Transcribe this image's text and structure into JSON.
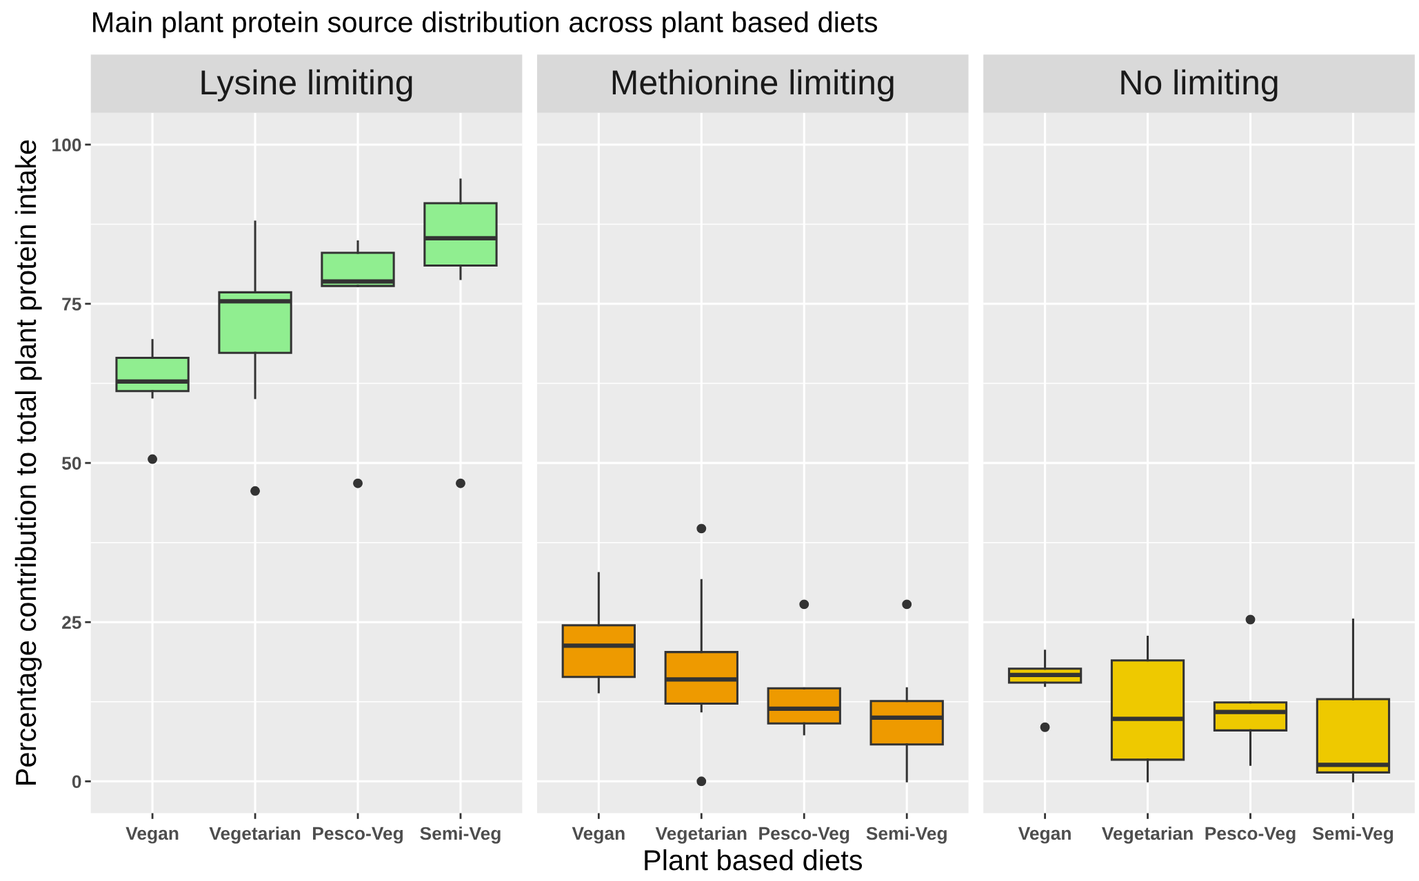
{
  "chart_data": [
    {
      "type": "box",
      "title": "Lysine limiting",
      "ylabel": "Percentage contribution to total plant protein intake",
      "annotations": [
        "Main plant protein source distribution across plant based diets"
      ],
      "categories": [
        "Vegan",
        "Vegetarian",
        "Pesco-Veg",
        "Semi-Veg"
      ],
      "color": "#90ee90",
      "ylim": [
        -5,
        105
      ],
      "yticks": [
        0,
        {
          "value": 12.5,
          "label": null
        },
        25,
        {
          "value": 37.5,
          "label": null
        },
        50,
        {
          "value": 62.5,
          "label": null
        },
        75,
        {
          "value": 87.5,
          "label": null
        },
        100
      ],
      "grid": true,
      "boxes": [
        {
          "low": 60.3,
          "q1": 61.3,
          "median": 62.8,
          "q3": 66.5,
          "high": 69.3,
          "outliers": [
            50.6
          ]
        },
        {
          "low": 60.2,
          "q1": 67.3,
          "median": 75.4,
          "q3": 76.8,
          "high": 87.9,
          "outliers": [
            45.6
          ]
        },
        {
          "low": 77.8,
          "q1": 77.8,
          "median": 78.5,
          "q3": 83.0,
          "high": 84.8,
          "outliers": [
            46.8
          ]
        },
        {
          "low": 78.9,
          "q1": 81.0,
          "median": 85.3,
          "q3": 90.8,
          "high": 94.5,
          "outliers": [
            46.8
          ]
        }
      ]
    },
    {
      "type": "box",
      "title": "Methionine limiting",
      "xlabel": "Plant based diets",
      "categories": [
        "Vegan",
        "Vegetarian",
        "Pesco-Veg",
        "Semi-Veg"
      ],
      "color": "#ee9a00",
      "ylim": [
        -5,
        105
      ],
      "yticks": [
        0,
        {
          "value": 12.5,
          "label": null
        },
        25,
        {
          "value": 37.5,
          "label": null
        },
        50,
        {
          "value": 62.5,
          "label": null
        },
        75,
        {
          "value": 87.5,
          "label": null
        },
        100
      ],
      "grid": true,
      "tick_labels": "x",
      "boxes": [
        {
          "low": 14.0,
          "q1": 16.4,
          "median": 21.3,
          "q3": 24.5,
          "high": 32.7
        },
        {
          "low": 11.0,
          "q1": 12.2,
          "median": 16.0,
          "q3": 20.3,
          "high": 31.6,
          "outliers": [
            39.7,
            0
          ]
        },
        {
          "low": 7.4,
          "q1": 9.1,
          "median": 11.4,
          "q3": 14.6,
          "high": 14.6,
          "outliers": [
            27.8
          ]
        },
        {
          "low": 0,
          "q1": 5.8,
          "median": 10.0,
          "q3": 12.6,
          "high": 14.6,
          "outliers": [
            27.8
          ]
        }
      ]
    },
    {
      "type": "box",
      "title": "No limiting",
      "categories": [
        "Vegan",
        "Vegetarian",
        "Pesco-Veg",
        "Semi-Veg"
      ],
      "color": "#eec900",
      "ylim": [
        -5,
        105
      ],
      "yticks": [
        0,
        {
          "value": 12.5,
          "label": null
        },
        25,
        {
          "value": 37.5,
          "label": null
        },
        50,
        {
          "value": 62.5,
          "label": null
        },
        75,
        {
          "value": 87.5,
          "label": null
        },
        100
      ],
      "grid": true,
      "tick_labels": "x",
      "boxes": [
        {
          "low": 15.0,
          "q1": 15.5,
          "median": 16.7,
          "q3": 17.7,
          "high": 20.5,
          "outliers": [
            8.5
          ]
        },
        {
          "low": 0,
          "q1": 3.4,
          "median": 9.8,
          "q3": 19.0,
          "high": 22.7
        },
        {
          "low": 2.6,
          "q1": 8.0,
          "median": 10.9,
          "q3": 12.4,
          "high": 12.4,
          "outliers": [
            25.4
          ]
        },
        {
          "low": 0,
          "q1": 1.4,
          "median": 2.6,
          "q3": 12.9,
          "high": 25.4
        }
      ]
    }
  ]
}
